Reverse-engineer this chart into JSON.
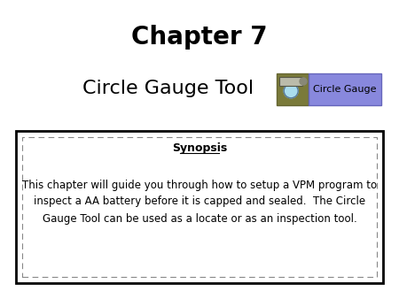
{
  "title": "Chapter 7",
  "subtitle": "Circle Gauge Tool",
  "synopsis_header": "Synopsis",
  "synopsis_text": "This chapter will guide you through how to setup a VPM program to\ninspect a AA battery before it is capped and sealed.  The Circle\nGauge Tool can be used as a locate or as an inspection tool.",
  "bg_color": "#ffffff",
  "title_fontsize": 20,
  "subtitle_fontsize": 16,
  "synopsis_header_fontsize": 9,
  "synopsis_text_fontsize": 8.5,
  "box_outer_color": "#000000",
  "box_inner_dash_color": "#888888",
  "badge_bg_color": "#8888dd",
  "badge_icon_bg": "#7a7a3a",
  "badge_text": "Circle Gauge",
  "badge_text_color": "#000000",
  "badge_text_fontsize": 8
}
